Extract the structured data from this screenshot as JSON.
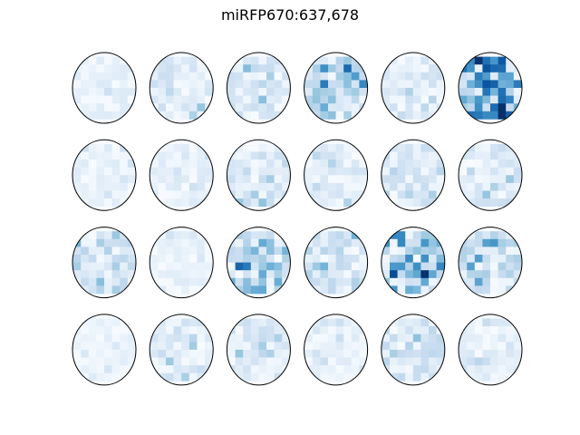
{
  "chart_data": {
    "type": "heatmap",
    "title": "miRFP670:637,678",
    "colormap": "Blues",
    "value_range": [
      0,
      1
    ],
    "grid_rows": 4,
    "grid_cols": 6,
    "cell_grid": 8,
    "panels": [
      {
        "row": 0,
        "col": 0,
        "density": 0.08
      },
      {
        "row": 0,
        "col": 1,
        "density": 0.14
      },
      {
        "row": 0,
        "col": 2,
        "density": 0.16
      },
      {
        "row": 0,
        "col": 3,
        "density": 0.28
      },
      {
        "row": 0,
        "col": 4,
        "density": 0.13
      },
      {
        "row": 0,
        "col": 5,
        "density": 0.55
      },
      {
        "row": 1,
        "col": 0,
        "density": 0.08
      },
      {
        "row": 1,
        "col": 1,
        "density": 0.1
      },
      {
        "row": 1,
        "col": 2,
        "density": 0.16
      },
      {
        "row": 1,
        "col": 3,
        "density": 0.12
      },
      {
        "row": 1,
        "col": 4,
        "density": 0.15
      },
      {
        "row": 1,
        "col": 5,
        "density": 0.14
      },
      {
        "row": 2,
        "col": 0,
        "density": 0.22
      },
      {
        "row": 2,
        "col": 1,
        "density": 0.08
      },
      {
        "row": 2,
        "col": 2,
        "density": 0.34
      },
      {
        "row": 2,
        "col": 3,
        "density": 0.2
      },
      {
        "row": 2,
        "col": 4,
        "density": 0.42
      },
      {
        "row": 2,
        "col": 5,
        "density": 0.22
      },
      {
        "row": 3,
        "col": 0,
        "density": 0.07
      },
      {
        "row": 3,
        "col": 1,
        "density": 0.14
      },
      {
        "row": 3,
        "col": 2,
        "density": 0.14
      },
      {
        "row": 3,
        "col": 3,
        "density": 0.08
      },
      {
        "row": 3,
        "col": 4,
        "density": 0.18
      },
      {
        "row": 3,
        "col": 5,
        "density": 0.1
      }
    ]
  }
}
